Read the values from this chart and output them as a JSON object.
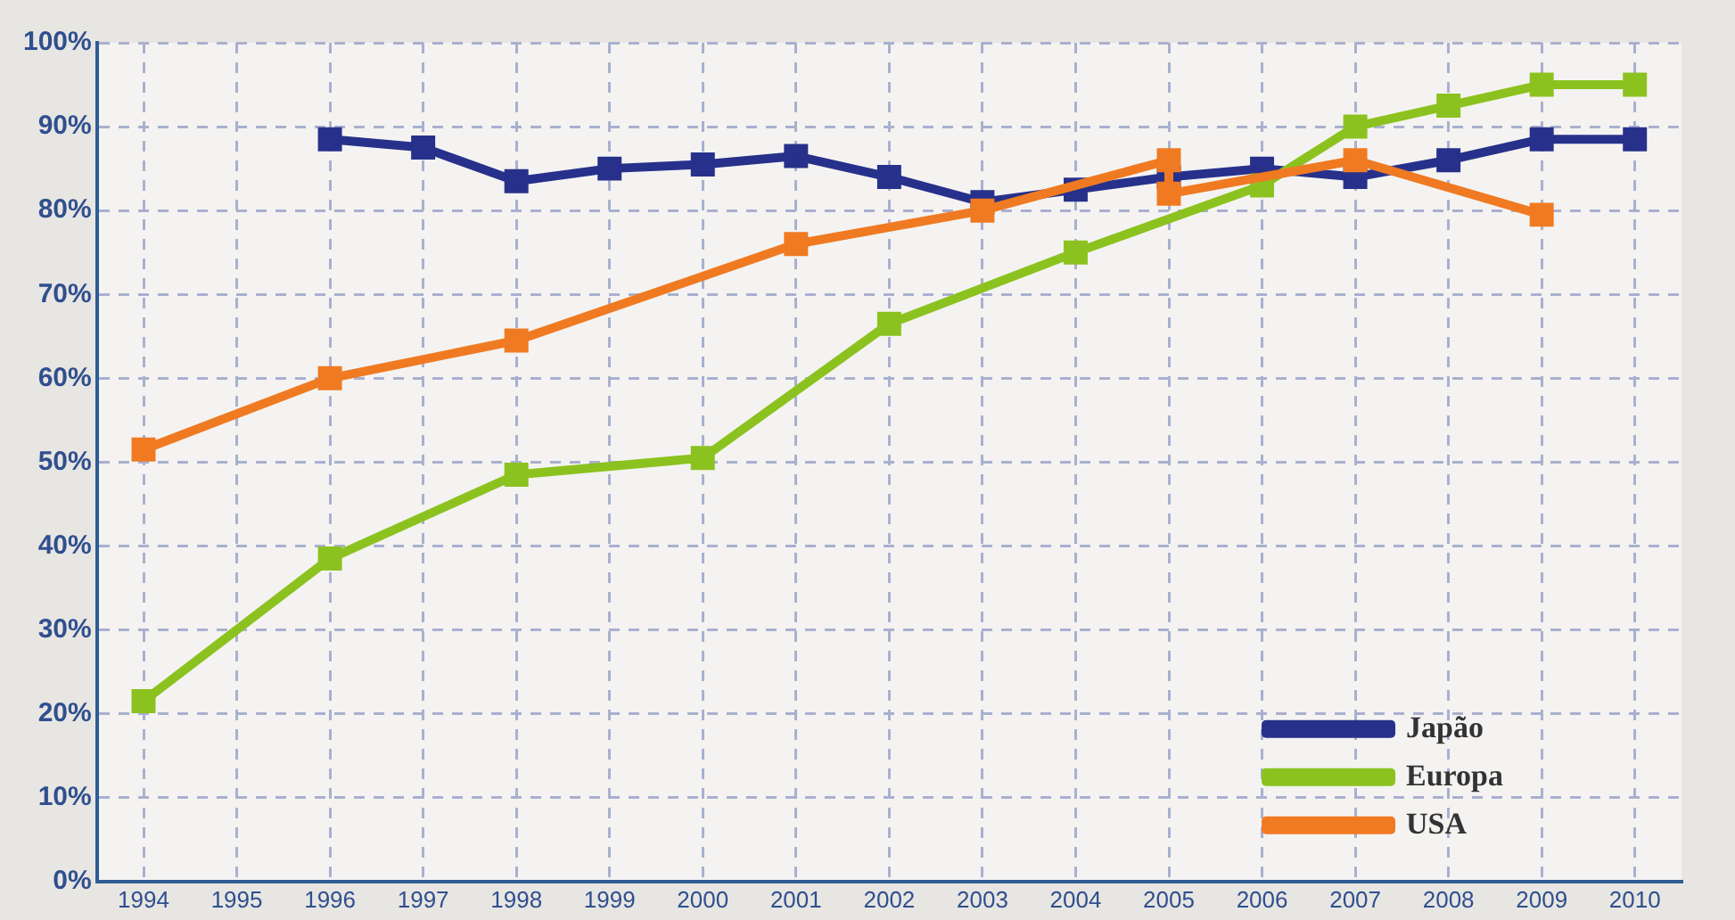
{
  "chart_data": {
    "type": "line",
    "marker": "square",
    "grid": true,
    "legend": "bottom right",
    "xlim": [
      1993.5,
      2010.5
    ],
    "xticks": [
      1994,
      1995,
      1996,
      1997,
      1998,
      1999,
      2000,
      2001,
      2002,
      2003,
      2004,
      2005,
      2006,
      2007,
      2008,
      2009,
      2010
    ],
    "ylim": [
      0,
      100
    ],
    "yticks": [
      {
        "value": 0,
        "label": "0%"
      },
      {
        "value": 10,
        "label": "10%"
      },
      {
        "value": 20,
        "label": "20%"
      },
      {
        "value": 30,
        "label": "30%"
      },
      {
        "value": 40,
        "label": "40%"
      },
      {
        "value": 50,
        "label": "50%"
      },
      {
        "value": 60,
        "label": "60%"
      },
      {
        "value": 70,
        "label": "70%"
      },
      {
        "value": 80,
        "label": "80%"
      },
      {
        "value": 90,
        "label": "90%"
      },
      {
        "value": 100,
        "label": "100%"
      }
    ],
    "series": [
      {
        "name": "Japão",
        "color": "#27318b",
        "x": [
          1996,
          1997,
          1998,
          1999,
          2000,
          2001,
          2002,
          2003,
          2004,
          2005,
          2006,
          2007,
          2008,
          2009,
          2010
        ],
        "values": [
          88.5,
          87.5,
          83.5,
          85,
          85.5,
          86.5,
          84,
          81,
          82.5,
          84,
          85,
          84,
          86,
          88.5,
          88.5
        ]
      },
      {
        "name": "Europa",
        "color": "#8cc21f",
        "x": [
          1994,
          1996,
          1998,
          2000,
          2002,
          2004,
          2006,
          2007,
          2008,
          2009,
          2010
        ],
        "values": [
          21.5,
          38.5,
          48.5,
          50.5,
          66.5,
          75,
          83,
          90,
          92.5,
          95,
          95
        ]
      },
      {
        "name": "USA",
        "color": "#f07a22",
        "x": [
          1994,
          1996,
          1998,
          2001,
          2003,
          2005,
          2005,
          2007,
          2009
        ],
        "values": [
          51.5,
          60,
          64.5,
          76,
          80,
          86,
          82,
          86,
          79.5
        ]
      }
    ]
  }
}
